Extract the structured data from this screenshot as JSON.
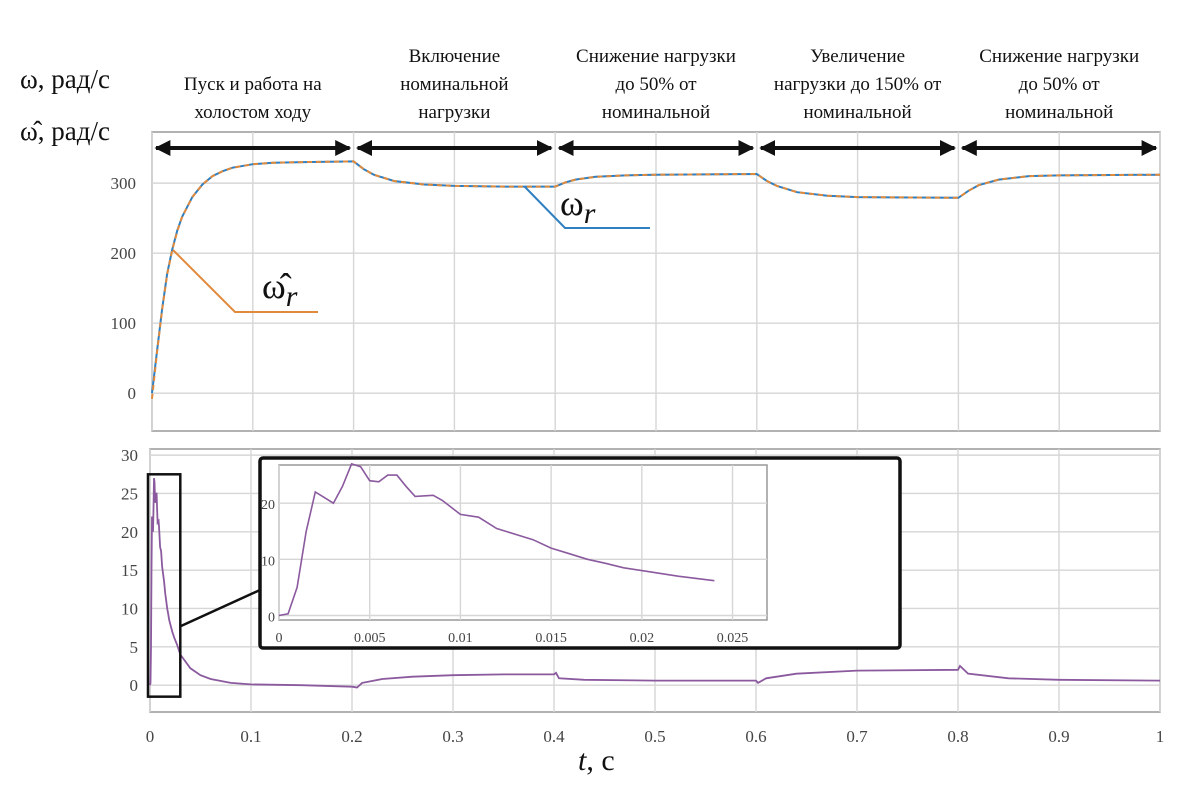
{
  "chart_data": [
    {
      "type": "line",
      "name": "speed",
      "ylabel_lines": [
        "ω, рад/с",
        "ω̂, рад/с"
      ],
      "xlim": [
        0,
        1
      ],
      "ylim": [
        -54,
        373
      ],
      "yticks": [
        0,
        100,
        200,
        300
      ],
      "xticks": [
        0,
        0.1,
        0.2,
        0.3,
        0.4,
        0.5,
        0.6,
        0.7,
        0.8,
        0.9,
        1
      ],
      "grid": true,
      "phases": [
        {
          "range": [
            0,
            0.2
          ],
          "lines": [
            "Пуск и работа на",
            "холостом ходу"
          ]
        },
        {
          "range": [
            0.2,
            0.4
          ],
          "lines": [
            "Включение",
            "номинальной",
            "нагрузки"
          ]
        },
        {
          "range": [
            0.4,
            0.6
          ],
          "lines": [
            "Снижение нагрузки",
            "до 50% от",
            "номинальной"
          ]
        },
        {
          "range": [
            0.6,
            0.8
          ],
          "lines": [
            "Увеличение",
            "нагрузки до 150% от",
            "номинальной"
          ]
        },
        {
          "range": [
            0.8,
            1.0
          ],
          "lines": [
            "Снижение нагрузки",
            "до 50% от",
            "номинальной"
          ]
        }
      ],
      "series": [
        {
          "name": "ω",
          "label_main": "ω",
          "label_sub": "r",
          "color": "#2f7fc1",
          "style": "solid",
          "points": [
            [
              0,
              0
            ],
            [
              0.005,
              60
            ],
            [
              0.01,
              120
            ],
            [
              0.015,
              170
            ],
            [
              0.02,
              205
            ],
            [
              0.025,
              232
            ],
            [
              0.03,
              252
            ],
            [
              0.04,
              280
            ],
            [
              0.05,
              298
            ],
            [
              0.06,
              310
            ],
            [
              0.07,
              317
            ],
            [
              0.08,
              322
            ],
            [
              0.1,
              327
            ],
            [
              0.12,
              329
            ],
            [
              0.15,
              330
            ],
            [
              0.2,
              331
            ],
            [
              0.21,
              320
            ],
            [
              0.22,
              312
            ],
            [
              0.24,
              303
            ],
            [
              0.27,
              298
            ],
            [
              0.3,
              296
            ],
            [
              0.35,
              295
            ],
            [
              0.4,
              295
            ],
            [
              0.41,
              301
            ],
            [
              0.42,
              305
            ],
            [
              0.44,
              309
            ],
            [
              0.47,
              311
            ],
            [
              0.5,
              312
            ],
            [
              0.6,
              313
            ],
            [
              0.61,
              303
            ],
            [
              0.62,
              296
            ],
            [
              0.64,
              287
            ],
            [
              0.67,
              282
            ],
            [
              0.7,
              280
            ],
            [
              0.8,
              279
            ],
            [
              0.81,
              289
            ],
            [
              0.82,
              297
            ],
            [
              0.84,
              305
            ],
            [
              0.87,
              310
            ],
            [
              0.9,
              311
            ],
            [
              1.0,
              312
            ]
          ]
        },
        {
          "name": "ω̂",
          "label_main": "ω̂",
          "label_sub": "r",
          "color": "#e08a3c",
          "style": "dashed",
          "points": [
            [
              0,
              -8
            ],
            [
              0.005,
              58
            ],
            [
              0.01,
              119
            ],
            [
              0.015,
              169
            ],
            [
              0.02,
              204
            ],
            [
              0.025,
              231
            ],
            [
              0.03,
              252
            ],
            [
              0.04,
              280
            ],
            [
              0.05,
              298
            ],
            [
              0.06,
              310
            ],
            [
              0.07,
              317
            ],
            [
              0.08,
              322
            ],
            [
              0.1,
              327
            ],
            [
              0.12,
              329
            ],
            [
              0.15,
              330
            ],
            [
              0.2,
              331
            ],
            [
              0.21,
              320
            ],
            [
              0.22,
              312
            ],
            [
              0.24,
              303
            ],
            [
              0.27,
              298
            ],
            [
              0.3,
              296
            ],
            [
              0.35,
              295
            ],
            [
              0.4,
              295
            ],
            [
              0.41,
              301
            ],
            [
              0.42,
              305
            ],
            [
              0.44,
              309
            ],
            [
              0.47,
              311
            ],
            [
              0.5,
              312
            ],
            [
              0.6,
              313
            ],
            [
              0.61,
              303
            ],
            [
              0.62,
              296
            ],
            [
              0.64,
              287
            ],
            [
              0.67,
              282
            ],
            [
              0.7,
              280
            ],
            [
              0.8,
              279
            ],
            [
              0.81,
              289
            ],
            [
              0.82,
              297
            ],
            [
              0.84,
              305
            ],
            [
              0.87,
              310
            ],
            [
              0.9,
              311
            ],
            [
              1.0,
              312
            ]
          ]
        }
      ]
    },
    {
      "type": "line",
      "name": "error",
      "xlabel_main": "t",
      "xlabel_unit": ", с",
      "xlim": [
        0,
        1
      ],
      "ylim": [
        -3.5,
        30.8
      ],
      "yticks": [
        0,
        5,
        10,
        15,
        20,
        25,
        30
      ],
      "xticks": [
        0,
        0.1,
        0.2,
        0.3,
        0.4,
        0.5,
        0.6,
        0.7,
        0.8,
        0.9,
        1
      ],
      "grid": true,
      "color": "#8b5a9e",
      "points": [
        [
          0,
          0
        ],
        [
          0.0005,
          0.3
        ],
        [
          0.001,
          5
        ],
        [
          0.0015,
          15
        ],
        [
          0.002,
          22
        ],
        [
          0.0025,
          21
        ],
        [
          0.003,
          20
        ],
        [
          0.0035,
          23
        ],
        [
          0.004,
          27
        ],
        [
          0.0045,
          26.5
        ],
        [
          0.005,
          24
        ],
        [
          0.0055,
          23.8
        ],
        [
          0.006,
          25
        ],
        [
          0.0065,
          25
        ],
        [
          0.007,
          23
        ],
        [
          0.0075,
          21.2
        ],
        [
          0.0085,
          21.4
        ],
        [
          0.009,
          20.5
        ],
        [
          0.01,
          18
        ],
        [
          0.011,
          17.5
        ],
        [
          0.012,
          15.5
        ],
        [
          0.013,
          14.5
        ],
        [
          0.014,
          13.5
        ],
        [
          0.015,
          12
        ],
        [
          0.016,
          11
        ],
        [
          0.017,
          10
        ],
        [
          0.018,
          9.3
        ],
        [
          0.019,
          8.5
        ],
        [
          0.02,
          8
        ],
        [
          0.022,
          7
        ],
        [
          0.024,
          6.2
        ],
        [
          0.027,
          5.2
        ],
        [
          0.03,
          4
        ],
        [
          0.04,
          2.2
        ],
        [
          0.05,
          1.3
        ],
        [
          0.06,
          0.8
        ],
        [
          0.08,
          0.3
        ],
        [
          0.1,
          0.1
        ],
        [
          0.15,
          0
        ],
        [
          0.2,
          -0.2
        ],
        [
          0.205,
          -0.3
        ],
        [
          0.21,
          0.3
        ],
        [
          0.23,
          0.8
        ],
        [
          0.26,
          1.1
        ],
        [
          0.3,
          1.3
        ],
        [
          0.35,
          1.4
        ],
        [
          0.4,
          1.4
        ],
        [
          0.402,
          1.6
        ],
        [
          0.405,
          0.9
        ],
        [
          0.43,
          0.7
        ],
        [
          0.5,
          0.6
        ],
        [
          0.6,
          0.6
        ],
        [
          0.602,
          0.3
        ],
        [
          0.61,
          0.9
        ],
        [
          0.64,
          1.5
        ],
        [
          0.7,
          1.9
        ],
        [
          0.8,
          2.0
        ],
        [
          0.802,
          2.5
        ],
        [
          0.81,
          1.5
        ],
        [
          0.85,
          0.9
        ],
        [
          0.9,
          0.7
        ],
        [
          1.0,
          0.6
        ]
      ],
      "zoom_region": {
        "xlim": [
          -0.002,
          0.03
        ],
        "ylim": [
          -1.5,
          27.5
        ]
      },
      "inset": {
        "xlim": [
          0,
          0.0269
        ],
        "ylim": [
          -0.8,
          26.8
        ],
        "xticks": [
          0,
          0.005,
          0.01,
          0.015,
          0.02,
          0.025
        ],
        "xtick_labels": [
          "0",
          "0.005",
          "0.01",
          "0.015",
          "0.02",
          "0.025"
        ],
        "yticks": [
          0,
          10,
          20
        ]
      }
    }
  ]
}
